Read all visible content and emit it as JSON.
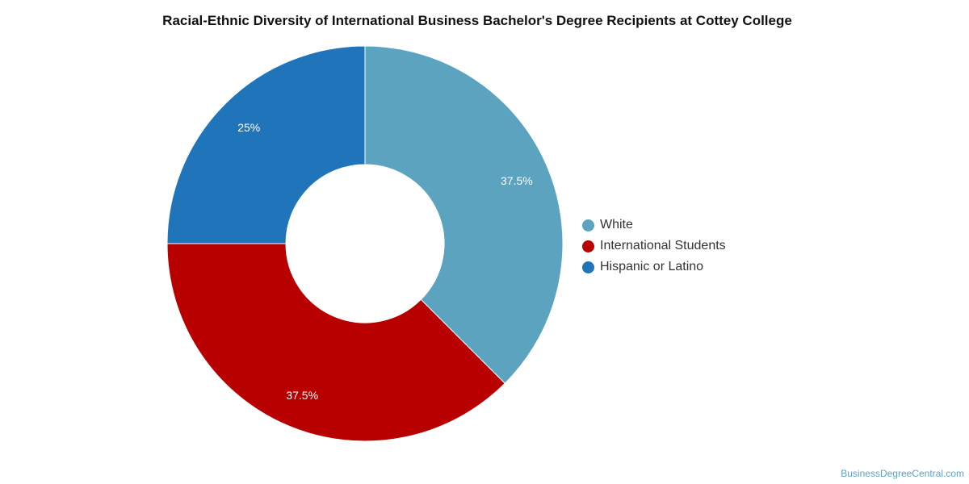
{
  "chart_data": {
    "type": "pie",
    "title": "Racial-Ethnic Diversity of International Business Bachelor's Degree Recipients at Cottey College",
    "donut": true,
    "legend_position": "right",
    "slices": [
      {
        "label": "White",
        "value": 37.5,
        "display": "37.5%",
        "color": "#5ba3bf"
      },
      {
        "label": "International Students",
        "value": 37.5,
        "display": "37.5%",
        "color": "#b80000"
      },
      {
        "label": "Hispanic or Latino",
        "value": 25,
        "display": "25%",
        "color": "#1f74ba"
      }
    ]
  },
  "footer": {
    "watermark": "BusinessDegreeCentral.com"
  }
}
